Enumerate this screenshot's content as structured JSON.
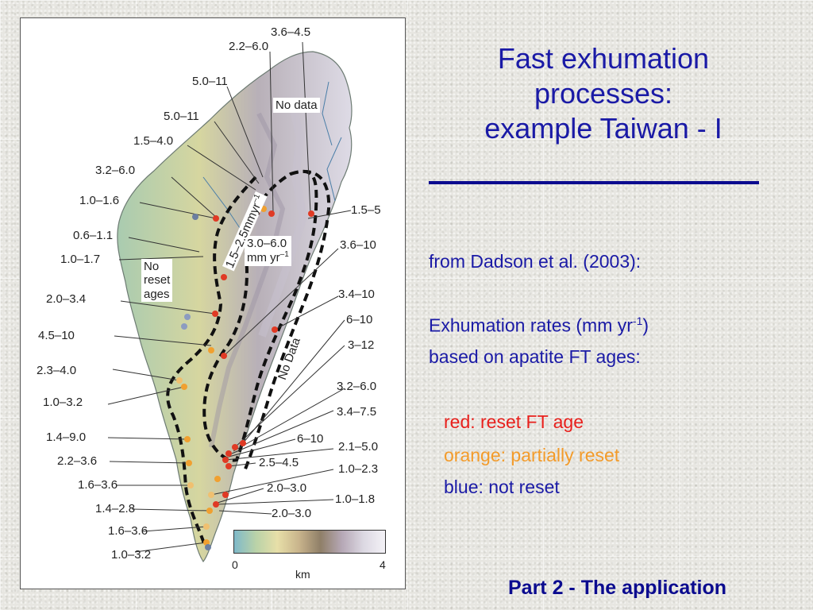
{
  "slide": {
    "title_line1": "Fast exhumation",
    "title_line2": "processes:",
    "title_line3": "example Taiwan - I",
    "source": "from Dadson et al. (2003):",
    "rates_prefix": "Exhumation rates (mm yr",
    "rates_sup": "-1",
    "rates_suffix": ")",
    "based_on": "based on apatite FT ages:",
    "legend_red": "red: reset FT age",
    "legend_orange": "orange: partially reset",
    "legend_blue": "blue: not reset",
    "footer": "Part 2 - The application",
    "colors": {
      "title": "#1a1aa6",
      "red": "#e8201c",
      "orange": "#f39b2a",
      "blue": "#1a1aa6"
    }
  },
  "figure": {
    "labels_right_top": [
      "3.6–4.5",
      "2.2–6.0"
    ],
    "labels_left": [
      "5.0–11",
      "5.0–11",
      "1.5–4.0",
      "3.2–6.0",
      "1.0–1.6",
      "0.6–1.1",
      "1.0–1.7",
      "2.0–3.4",
      "4.5–10",
      "2.3–4.0",
      "1.0–3.2",
      "1.4–9.0",
      "2.2–3.6",
      "1.6–3.6",
      "1.4–2.8",
      "1.6–3.6",
      "1.0–3.2"
    ],
    "labels_right": [
      "1.5–5",
      "3.6–10",
      "3.4–10",
      "6–10",
      "3–12",
      "3.2–6.0",
      "3.4–7.5",
      "6–10",
      "2.1–5.0",
      "2.5–4.5",
      "1.0–2.3",
      "2.0–3.0",
      "1.0–1.8",
      "2.0–3.0"
    ],
    "no_data_top": "No data",
    "no_data_rot": "No Data",
    "no_reset_line1": "No",
    "no_reset_line2": "reset",
    "no_reset_line3": "ages",
    "rate_box_line1": "3.0–6.0",
    "rate_box_line2": "mm yr",
    "rate_box_sup": "–1",
    "rot_rate": "1.5–2.5mmyr",
    "rot_rate_sup": "–1",
    "legend_min": "0",
    "legend_max": "4",
    "legend_unit": "km"
  }
}
